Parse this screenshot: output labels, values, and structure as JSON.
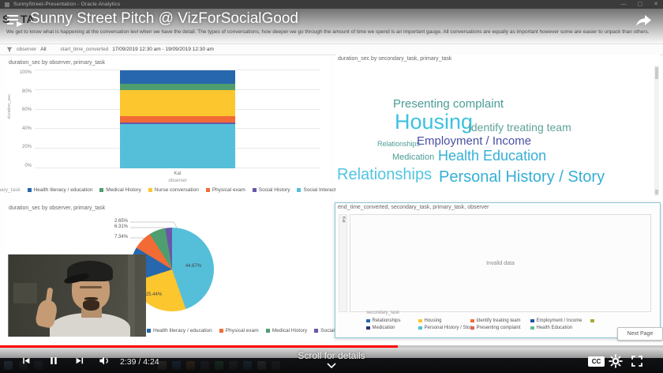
{
  "window": {
    "title": "SunnyStreet-Presentation - Oracle Analytics",
    "minimize": "—",
    "maximize": "▢",
    "close": "✕"
  },
  "video_overlay": {
    "title": "Sunny Street Pitch @ VizForSocialGood",
    "heading_fragments": [
      "S",
      "TA"
    ]
  },
  "dashboard": {
    "description": "We get to know what is happening at the conversation levl when we have the detail. The types of conversations, how deeper we go through the amount of time we spend is an important gauge. All conversations are equally as important however some are easier to unpack than others.",
    "filter": {
      "observer_label": "observer",
      "observer_value": "All",
      "time_label": "start_time_converted",
      "time_value": "17/09/2019 12:30 am - 19/09/2019 12:30 am"
    },
    "next_page_label": "Next Page"
  },
  "chart_data": [
    {
      "type": "bar",
      "stacked": true,
      "title": "duration_sec by observer, primary_task",
      "xlabel": "observer",
      "ylabel": "duration_sec",
      "categories": [
        "Kat"
      ],
      "ylim": [
        0,
        100
      ],
      "y_ticks": [
        "0%",
        "20%",
        "40%",
        "60%",
        "80%",
        "100%"
      ],
      "grid": true,
      "legend_title": "primary_task",
      "legend_position": "bottom",
      "series": [
        {
          "name": "Social Interactions",
          "color": "#55BFD9",
          "values": [
            45
          ]
        },
        {
          "name": "Social History",
          "color": "#6B56A8",
          "values": [
            1.5
          ]
        },
        {
          "name": "Physical exam",
          "color": "#F26B35",
          "values": [
            7
          ]
        },
        {
          "name": "Nurse conversation",
          "color": "#FCC62F",
          "values": [
            26
          ]
        },
        {
          "name": "Medical History",
          "color": "#4F9E6F",
          "values": [
            7
          ]
        },
        {
          "name": "Health literacy / education",
          "color": "#2767AE",
          "values": [
            13.5
          ]
        }
      ],
      "legend": [
        {
          "label": "Health literacy / education",
          "color": "#2767AE"
        },
        {
          "label": "Medical History",
          "color": "#4F9E6F"
        },
        {
          "label": "Nurse conversation",
          "color": "#FCC62F"
        },
        {
          "label": "Physical exam",
          "color": "#F26B35"
        },
        {
          "label": "Social History",
          "color": "#6B56A8"
        },
        {
          "label": "Social Interactions",
          "color": "#55BFD9"
        }
      ]
    },
    {
      "type": "wordcloud",
      "title": "duration_sec by secondary_task, primary_task",
      "words": [
        {
          "text": "Presenting complaint",
          "color": "#4B9C95",
          "size": 15,
          "x": 73,
          "y": 43
        },
        {
          "text": "Housing",
          "color": "#3EC1E0",
          "size": 27,
          "x": 75,
          "y": 60
        },
        {
          "text": "Identify treating team",
          "color": "#5EA296",
          "size": 14,
          "x": 168,
          "y": 73
        },
        {
          "text": "Relationships",
          "color": "#4B9C95",
          "size": 9,
          "x": 53,
          "y": 97
        },
        {
          "text": "Employment / Income",
          "color": "#4A4FA3",
          "size": 15,
          "x": 103,
          "y": 90
        },
        {
          "text": "Medication",
          "color": "#4B9C95",
          "size": 11,
          "x": 72,
          "y": 113
        },
        {
          "text": "Health Education",
          "color": "#35AFD6",
          "size": 18,
          "x": 130,
          "y": 107
        },
        {
          "text": "Relationships",
          "color": "#52C5E2",
          "size": 20,
          "x": 2,
          "y": 130
        },
        {
          "text": "Personal History / Story",
          "color": "#35AFD6",
          "size": 20,
          "x": 131,
          "y": 133
        }
      ]
    },
    {
      "type": "pie",
      "title": "duration_sec by observer, primary_task",
      "slices": [
        {
          "label": "Social Interactions",
          "value": 44.67,
          "color": "#55BFD9",
          "shown_label": "44.67%",
          "label_pos": {
            "x": 237,
            "y": 82,
            "callout": false
          }
        },
        {
          "label": "Nurse conversation",
          "value": 25.44,
          "color": "#FCC62F",
          "shown_label": "25.44%",
          "label_pos": {
            "x": 187,
            "y": 118,
            "callout": false
          }
        },
        {
          "label": "Health literacy / education",
          "value": 13.59,
          "color": "#2767AE",
          "shown_label": "",
          "label_pos": null
        },
        {
          "label": "Physical exam",
          "value": 7.34,
          "color": "#F26B35",
          "shown_label": "7.34%",
          "label_pos": {
            "x": 154,
            "y": 46,
            "callout": true
          }
        },
        {
          "label": "Medical History",
          "value": 6.31,
          "color": "#4F9E6F",
          "shown_label": "6.31%",
          "label_pos": {
            "x": 154,
            "y": 33,
            "callout": true
          }
        },
        {
          "label": "Social History",
          "value": 2.65,
          "color": "#6B56A8",
          "shown_label": "2.65%",
          "label_pos": {
            "x": 154,
            "y": 26,
            "callout": true
          }
        }
      ],
      "legend": [
        {
          "label": "Health literacy / education",
          "color": "#2767AE"
        },
        {
          "label": "Physical exam",
          "color": "#F26B35"
        },
        {
          "label": "Medical History",
          "color": "#4F9E6F"
        },
        {
          "label": "Social History",
          "color": "#6B56A8"
        }
      ]
    },
    {
      "type": "table",
      "title": "end_time_converted, secondary_task, primary_task, observer",
      "status": "Invalid data",
      "row_header": "Kat",
      "legend_title": "secondary_task",
      "legend_rows": [
        [
          {
            "label": "Relationships",
            "color": "#2767AE"
          },
          {
            "label": "Housing",
            "color": "#FCC62F"
          },
          {
            "label": "Identify treating team",
            "color": "#F26B35"
          },
          {
            "label": "Employment / Income",
            "color": "#2053A4"
          },
          {
            "label": "",
            "color": "#A9A838"
          }
        ],
        [
          {
            "label": "Medication",
            "color": "#27337B"
          },
          {
            "label": "Personal History / Story",
            "color": "#55BFD9"
          },
          {
            "label": "Presenting complaint",
            "color": "#E06356"
          },
          {
            "label": "Health Education",
            "color": "#5FBE8E"
          }
        ]
      ]
    }
  ],
  "player": {
    "time_display": "2:39 / 4:24",
    "progress_percent": 60,
    "scroll_hint": "Scroll for details",
    "cc_label": "CC"
  }
}
